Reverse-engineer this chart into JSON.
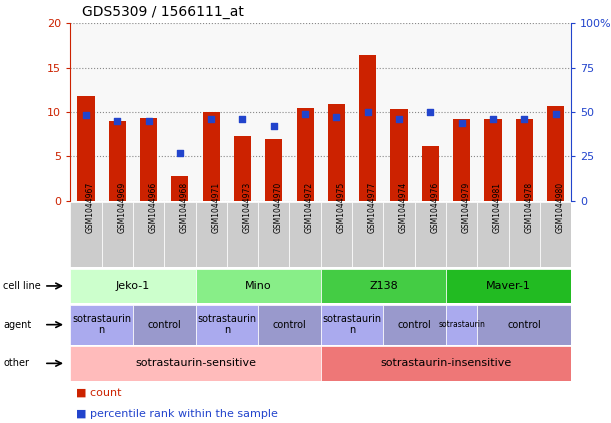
{
  "title": "GDS5309 / 1566111_at",
  "samples": [
    "GSM1044967",
    "GSM1044969",
    "GSM1044966",
    "GSM1044968",
    "GSM1044971",
    "GSM1044973",
    "GSM1044970",
    "GSM1044972",
    "GSM1044975",
    "GSM1044977",
    "GSM1044974",
    "GSM1044976",
    "GSM1044979",
    "GSM1044981",
    "GSM1044978",
    "GSM1044980"
  ],
  "counts": [
    11.8,
    9.0,
    9.3,
    2.8,
    10.0,
    7.3,
    6.9,
    10.4,
    10.9,
    16.4,
    10.3,
    6.1,
    9.2,
    9.2,
    9.2,
    10.7
  ],
  "percentiles": [
    48,
    45,
    45,
    27,
    46,
    46,
    42,
    49,
    47,
    50,
    46,
    50,
    44,
    46,
    46,
    49
  ],
  "ylim_left": [
    0,
    20
  ],
  "ylim_right": [
    0,
    100
  ],
  "yticks_left": [
    0,
    5,
    10,
    15,
    20
  ],
  "yticks_right": [
    0,
    25,
    50,
    75,
    100
  ],
  "bar_color": "#cc2200",
  "dot_color": "#2244cc",
  "cell_lines": [
    {
      "label": "Jeko-1",
      "start": 0,
      "end": 4,
      "color": "#ccffcc"
    },
    {
      "label": "Mino",
      "start": 4,
      "end": 8,
      "color": "#88ee88"
    },
    {
      "label": "Z138",
      "start": 8,
      "end": 12,
      "color": "#44cc44"
    },
    {
      "label": "Maver-1",
      "start": 12,
      "end": 16,
      "color": "#22bb22"
    }
  ],
  "agents": [
    {
      "label": "sotrastaurin\n   n",
      "start": 0,
      "end": 2,
      "color": "#aaaaee"
    },
    {
      "label": "control",
      "start": 2,
      "end": 4,
      "color": "#9999cc"
    },
    {
      "label": "sotrastaurin\n   n",
      "start": 4,
      "end": 6,
      "color": "#aaaaee"
    },
    {
      "label": "control",
      "start": 6,
      "end": 8,
      "color": "#9999cc"
    },
    {
      "label": "sotrastaurin\n   n",
      "start": 8,
      "end": 10,
      "color": "#aaaaee"
    },
    {
      "label": "control",
      "start": 10,
      "end": 12,
      "color": "#9999cc"
    },
    {
      "label": "sotrastaurin",
      "start": 12,
      "end": 13,
      "color": "#aaaaee"
    },
    {
      "label": "control",
      "start": 13,
      "end": 16,
      "color": "#9999cc"
    }
  ],
  "agents_display": [
    {
      "label": "sotrastaurin\nn",
      "start": 0,
      "end": 2
    },
    {
      "label": "control",
      "start": 2,
      "end": 4
    },
    {
      "label": "sotrastaurin\nn",
      "start": 4,
      "end": 6
    },
    {
      "label": "control",
      "start": 6,
      "end": 8
    },
    {
      "label": "sotrastaurin\nn",
      "start": 8,
      "end": 10
    },
    {
      "label": "control",
      "start": 10,
      "end": 12
    },
    {
      "label": "sotrastaurin",
      "start": 12,
      "end": 13
    },
    {
      "label": "control",
      "start": 13,
      "end": 16
    }
  ],
  "others": [
    {
      "label": "sotrastaurin-sensitive",
      "start": 0,
      "end": 8,
      "color": "#ffbbbb"
    },
    {
      "label": "sotrastaurin-insensitive",
      "start": 8,
      "end": 16,
      "color": "#ee7777"
    }
  ],
  "row_labels": [
    "cell line",
    "agent",
    "other"
  ],
  "bar_color_red": "#cc2200",
  "dot_color_blue": "#2244cc",
  "tick_color_left": "#cc2200",
  "tick_color_right": "#2244cc",
  "xlabel_bg": "#cccccc",
  "legend_count_color": "#cc2200",
  "legend_pct_color": "#2244cc"
}
